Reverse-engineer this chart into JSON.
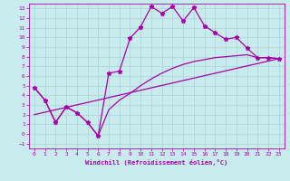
{
  "xlabel": "Windchill (Refroidissement éolien,°C)",
  "bg_color": "#c8ecee",
  "grid_color": "#aad4d8",
  "line_color": "#aa00aa",
  "xlim": [
    -0.5,
    23.5
  ],
  "ylim": [
    -1.5,
    13.5
  ],
  "xticks": [
    0,
    1,
    2,
    3,
    4,
    5,
    6,
    7,
    8,
    9,
    10,
    11,
    12,
    13,
    14,
    15,
    16,
    17,
    18,
    19,
    20,
    21,
    22,
    23
  ],
  "yticks": [
    -1,
    0,
    1,
    2,
    3,
    4,
    5,
    6,
    7,
    8,
    9,
    10,
    11,
    12,
    13
  ],
  "curve1_x": [
    0,
    1,
    2,
    3,
    4,
    5,
    6,
    7,
    8,
    9,
    10,
    11,
    12,
    13,
    14,
    15,
    16,
    17,
    18,
    19,
    20,
    21,
    22,
    23
  ],
  "curve1_y": [
    4.8,
    3.5,
    1.2,
    2.8,
    2.2,
    1.2,
    -0.2,
    6.3,
    6.5,
    9.9,
    11.1,
    13.2,
    12.5,
    13.2,
    11.7,
    13.1,
    11.2,
    10.5,
    9.8,
    10.0,
    8.9,
    7.9,
    7.9,
    7.8
  ],
  "curve2_x": [
    0,
    1,
    2,
    3,
    4,
    5,
    6,
    7,
    8,
    9,
    10,
    11,
    12,
    13,
    14,
    15,
    16,
    17,
    18,
    19,
    20,
    21,
    22,
    23
  ],
  "curve2_y": [
    4.8,
    3.5,
    1.2,
    2.8,
    2.2,
    1.2,
    -0.2,
    2.5,
    3.5,
    4.2,
    5.0,
    5.7,
    6.3,
    6.8,
    7.2,
    7.5,
    7.7,
    7.9,
    8.0,
    8.1,
    8.2,
    7.9,
    7.9,
    7.8
  ],
  "curve3_x": [
    0,
    23
  ],
  "curve3_y": [
    2.0,
    7.8
  ]
}
